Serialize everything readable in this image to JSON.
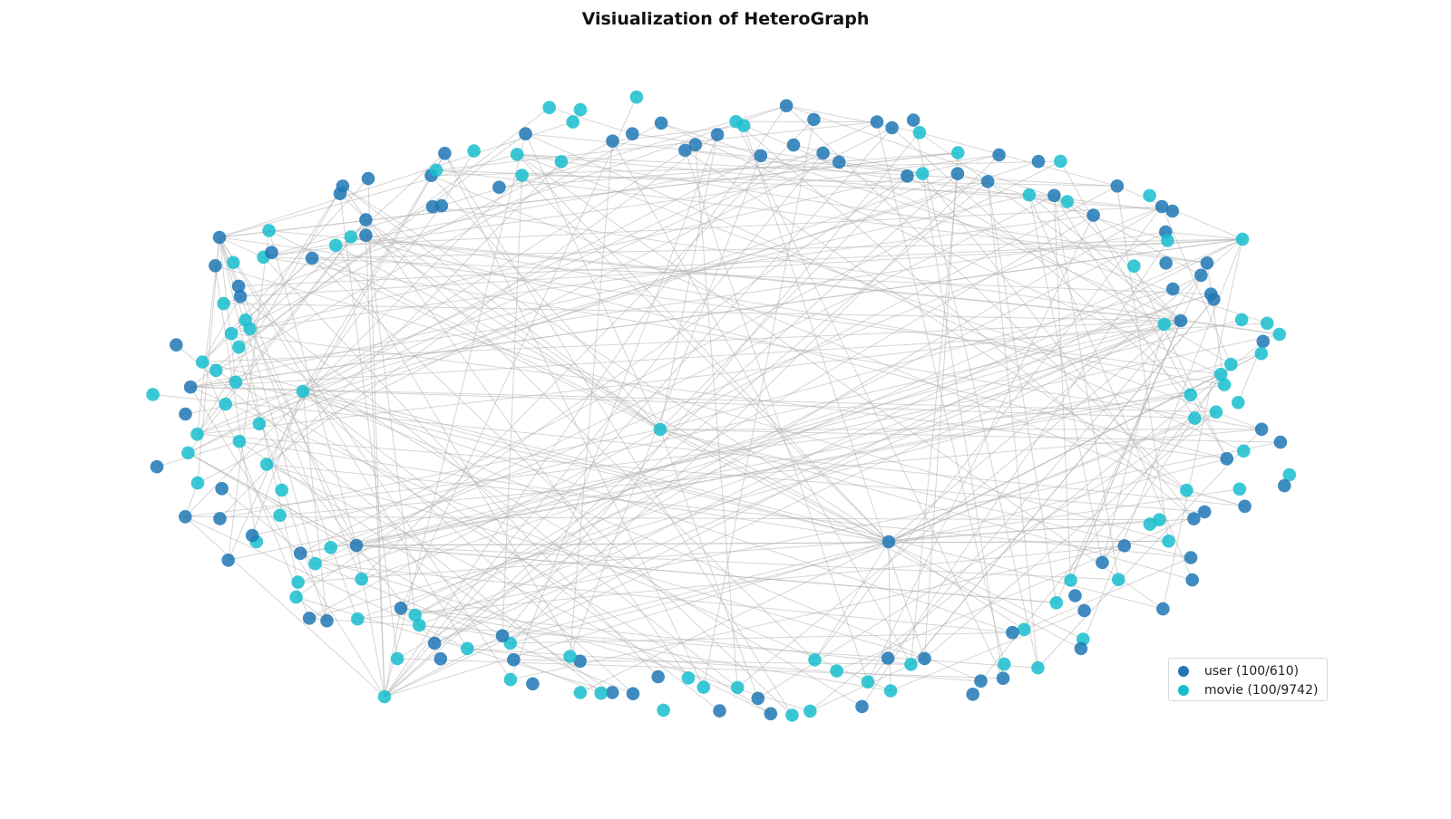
{
  "title": "Visiualization of HeteroGraph",
  "legend": [
    {
      "label": "user (100/610)",
      "color": "#1f77b4"
    },
    {
      "label": "movie (100/9742)",
      "color": "#17becf"
    }
  ],
  "node_types": {
    "user": {
      "color": "#1f77b4",
      "shown": 100,
      "total": 610
    },
    "movie": {
      "color": "#17becf",
      "shown": 100,
      "total": 9742
    }
  },
  "edge_color": "#b3b3b3"
}
